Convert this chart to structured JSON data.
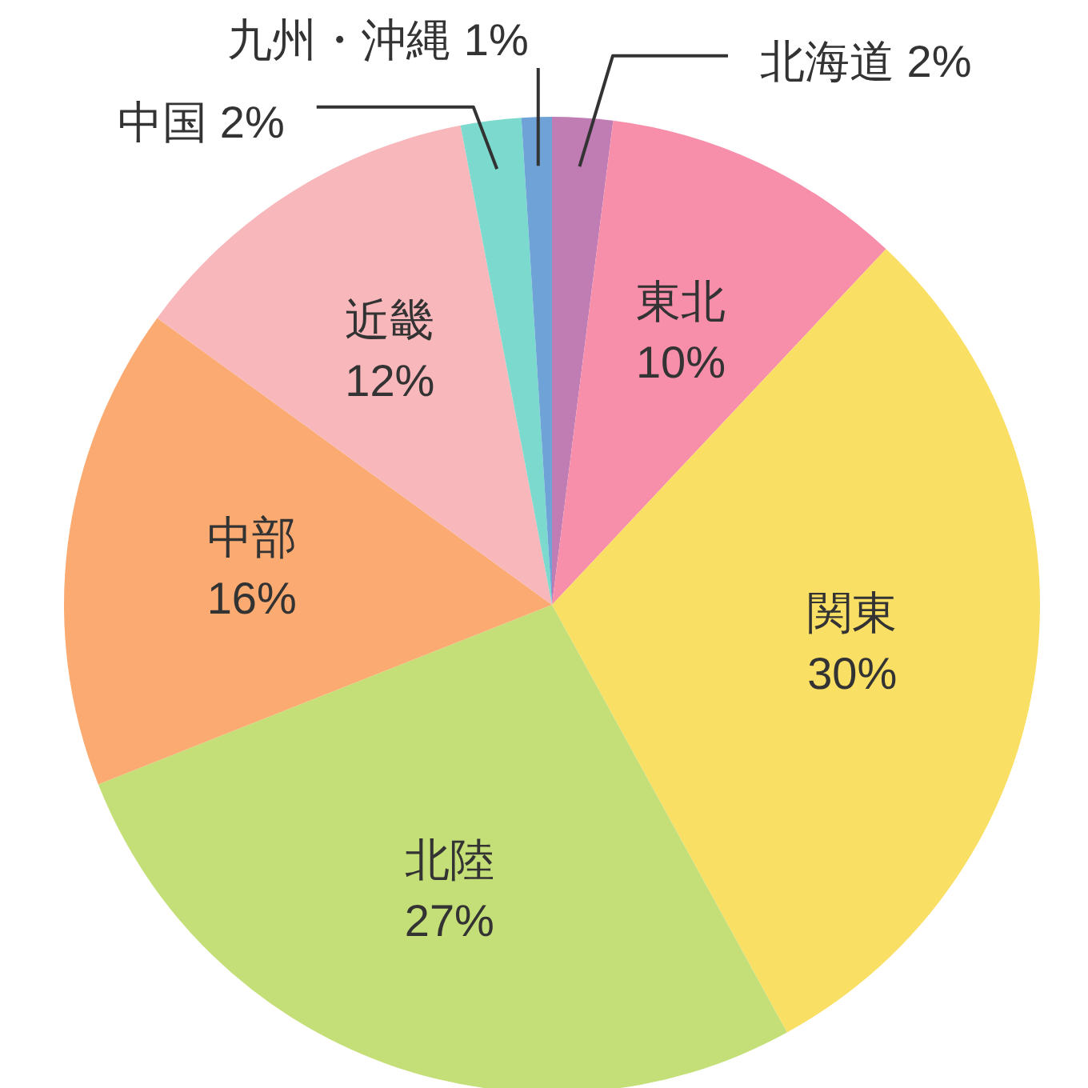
{
  "chart_data": {
    "type": "pie",
    "categories": [
      "北海道",
      "東北",
      "関東",
      "北陸",
      "中部",
      "近畿",
      "中国",
      "九州・沖縄"
    ],
    "values": [
      2,
      10,
      30,
      27,
      16,
      12,
      2,
      1
    ],
    "value_labels": [
      "2%",
      "10%",
      "30%",
      "27%",
      "16%",
      "12%",
      "2%",
      "1%"
    ],
    "colors": [
      "#c07db4",
      "#f78fab",
      "#f9df64",
      "#c5df78",
      "#fbab72",
      "#f8b7bb",
      "#7bdacd",
      "#6fa3d8"
    ]
  }
}
